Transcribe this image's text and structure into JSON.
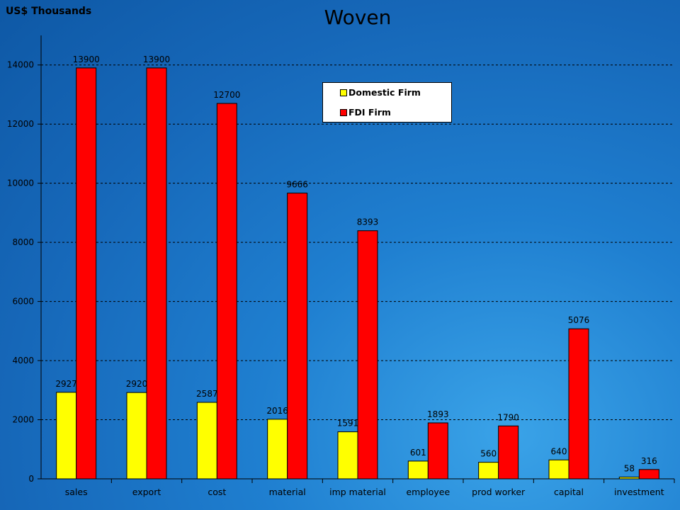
{
  "unit_label": "US$ Thousands",
  "chart_data": {
    "type": "bar",
    "title": "Woven",
    "ylabel": "US$ Thousands",
    "xlabel": "",
    "ylim": [
      0,
      15000
    ],
    "yticks": [
      0,
      2000,
      4000,
      6000,
      8000,
      10000,
      12000,
      14000
    ],
    "grid": true,
    "legend_position": "top-center",
    "categories": [
      "sales",
      "export",
      "cost",
      "material",
      "imp material",
      "employee",
      "prod worker",
      "capital",
      "investment"
    ],
    "series": [
      {
        "name": "Domestic Firm",
        "color": "#ffff00",
        "values": [
          2927,
          2920,
          2587,
          2016,
          1591,
          601,
          560,
          640,
          58
        ]
      },
      {
        "name": "FDI Firm",
        "color": "#ff0000",
        "values": [
          13900,
          13900,
          12700,
          9666,
          8393,
          1893,
          1790,
          5076,
          316
        ]
      }
    ]
  }
}
